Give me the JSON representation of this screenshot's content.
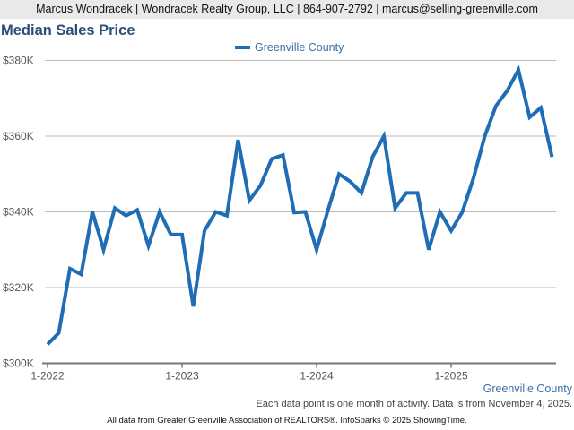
{
  "header": {
    "contact": "Marcus Wondracek | Wondracek Realty Group, LLC | 864-907-2792 | marcus@selling-greenville.com"
  },
  "page": {
    "region_label": "Greenville County",
    "note": "Each data point is one month of activity. Data is from November 4, 2025.",
    "footer": "All data from Greater Greenville Association of REALTORS®. InfoSparks © 2025 ShowingTime."
  },
  "colors": {
    "series": "#1f6db5",
    "title": "#2b4f79",
    "grid": "#bbbbbb",
    "axis": "#777777"
  },
  "chart_data": {
    "type": "line",
    "title": "Median Sales Price",
    "xlabel": "",
    "ylabel": "",
    "ylim": [
      300000,
      380000
    ],
    "yticks": [
      300000,
      320000,
      340000,
      360000,
      380000
    ],
    "ytick_labels": [
      "$300K",
      "$320K",
      "$340K",
      "$360K",
      "$380K"
    ],
    "xtick_labels": [
      "1-2022",
      "1-2023",
      "1-2024",
      "1-2025"
    ],
    "xtick_indices": [
      0,
      12,
      24,
      36
    ],
    "grid": true,
    "legend": "top-center",
    "x": [
      "1-2022",
      "2-2022",
      "3-2022",
      "4-2022",
      "5-2022",
      "6-2022",
      "7-2022",
      "8-2022",
      "9-2022",
      "10-2022",
      "11-2022",
      "12-2022",
      "1-2023",
      "2-2023",
      "3-2023",
      "4-2023",
      "5-2023",
      "6-2023",
      "7-2023",
      "8-2023",
      "9-2023",
      "10-2023",
      "11-2023",
      "12-2023",
      "1-2024",
      "2-2024",
      "3-2024",
      "4-2024",
      "5-2024",
      "6-2024",
      "7-2024",
      "8-2024",
      "9-2024",
      "10-2024",
      "11-2024",
      "12-2024",
      "1-2025",
      "2-2025",
      "3-2025",
      "4-2025",
      "5-2025",
      "6-2025",
      "7-2025",
      "8-2025",
      "9-2025",
      "10-2025"
    ],
    "series": [
      {
        "name": "Greenville County",
        "values": [
          305000,
          308000,
          325000,
          323500,
          340000,
          330000,
          341000,
          339000,
          340500,
          331000,
          340000,
          334000,
          334000,
          315000,
          335000,
          340000,
          339000,
          359000,
          343000,
          347000,
          354000,
          355000,
          339800,
          340000,
          330000,
          340300,
          350000,
          348000,
          345000,
          354500,
          360000,
          341000,
          345000,
          345000,
          330000,
          340000,
          335000,
          340000,
          349000,
          360000,
          368000,
          372000,
          377500,
          365000,
          367500,
          354500
        ]
      }
    ]
  }
}
